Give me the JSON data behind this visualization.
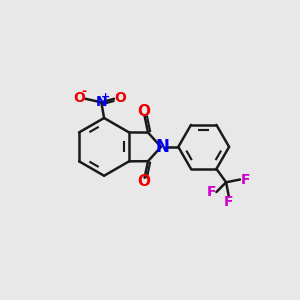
{
  "bg_color": "#e8e8e8",
  "bond_color": "#1a1a1a",
  "N_color": "#0000ee",
  "O_color": "#ee0000",
  "F_color": "#cc00cc",
  "lw": 1.8,
  "xlim": [
    0,
    10
  ],
  "ylim": [
    0,
    10
  ]
}
